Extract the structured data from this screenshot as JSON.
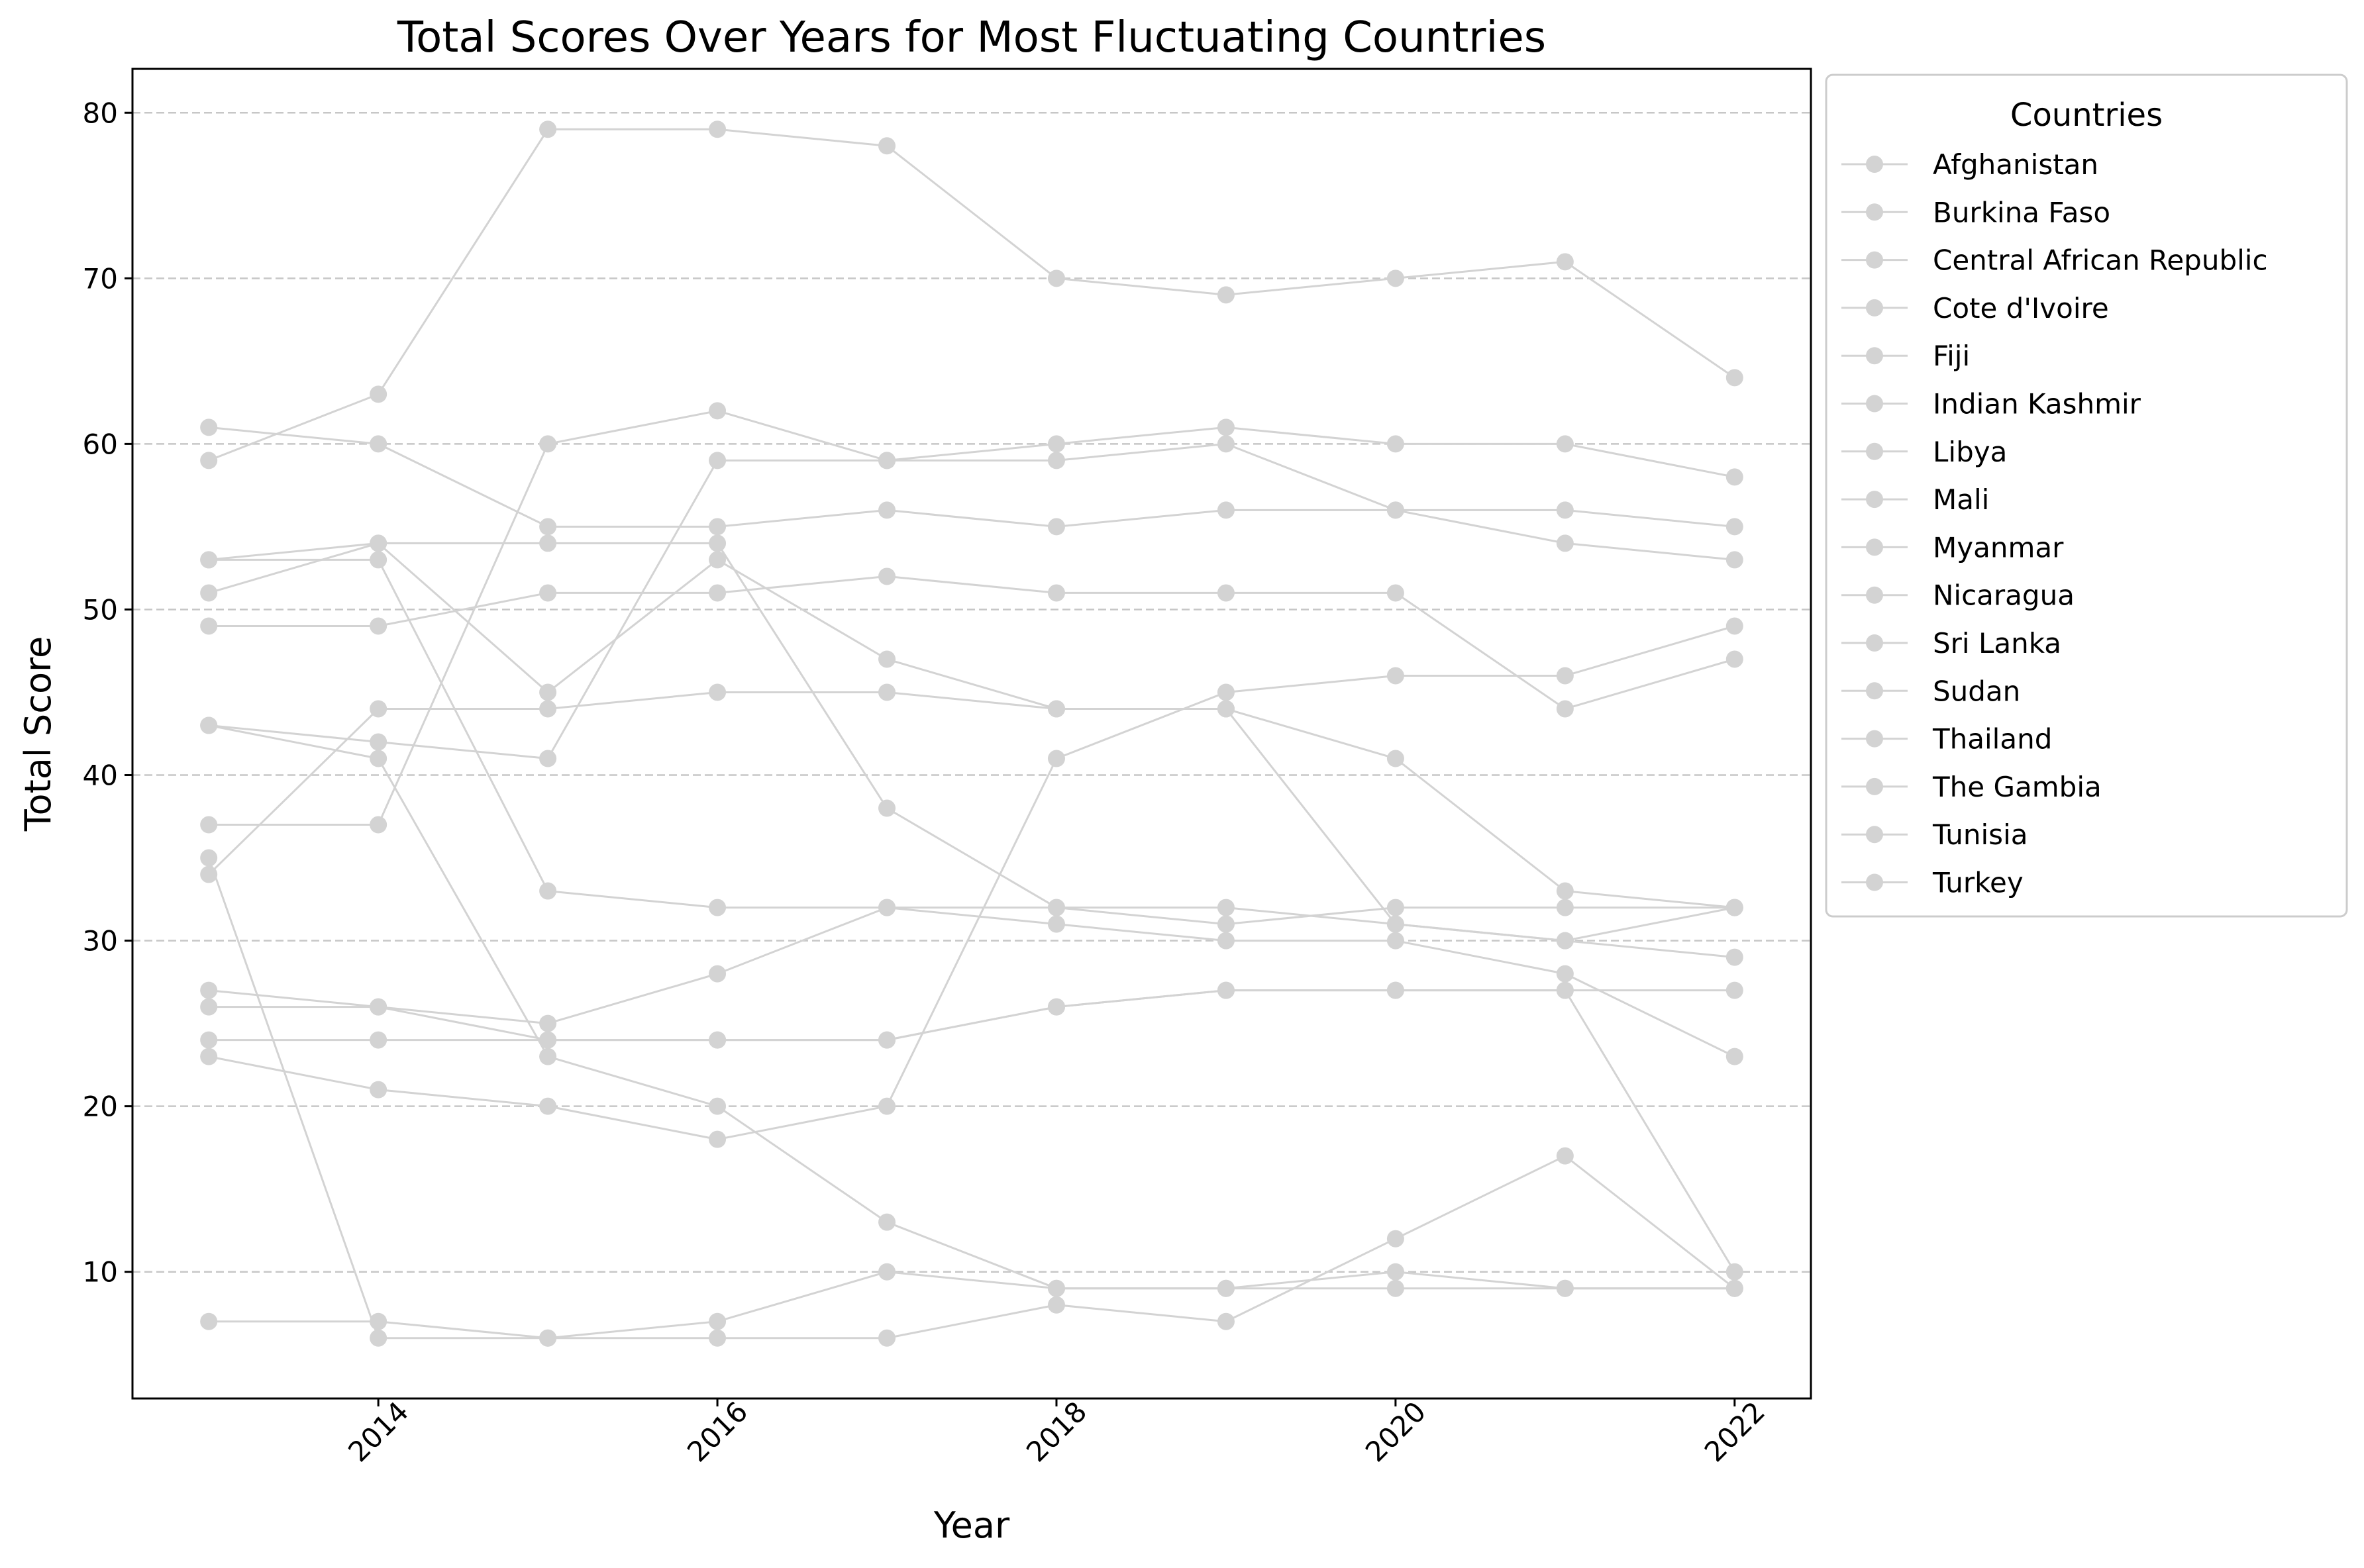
{
  "chart_data": {
    "type": "line",
    "title": "Total Scores Over Years for Most Fluctuating Countries",
    "xlabel": "Year",
    "ylabel": "Total Score",
    "xlim": [
      2012.55,
      2022.45
    ],
    "ylim": [
      2.35,
      82.65
    ],
    "x_ticks": [
      2014,
      2016,
      2018,
      2020,
      2022
    ],
    "y_ticks": [
      10,
      20,
      30,
      40,
      50,
      60,
      70,
      80
    ],
    "grid": "y-dashed",
    "legend_title": "Countries",
    "legend_position": "outside-right",
    "line_color": "#d3d3d3",
    "x": [
      2013,
      2014,
      2015,
      2016,
      2017,
      2018,
      2019,
      2020,
      2021,
      2022
    ],
    "series": [
      {
        "name": "Afghanistan",
        "values": [
          24,
          24,
          24,
          24,
          24,
          26,
          27,
          27,
          27,
          10
        ]
      },
      {
        "name": "Burkina Faso",
        "values": [
          43,
          42,
          41,
          59,
          59,
          59,
          60,
          56,
          54,
          53
        ]
      },
      {
        "name": "Central African Republic",
        "values": [
          7,
          7,
          6,
          7,
          10,
          9,
          9,
          10,
          9,
          9
        ]
      },
      {
        "name": "Cote d'Ivoire",
        "values": [
          34,
          44,
          44,
          45,
          45,
          44,
          44,
          41,
          33,
          32
        ]
      },
      {
        "name": "Fiji",
        "values": [
          23,
          21,
          20,
          18,
          20,
          41,
          45,
          46,
          46,
          49
        ]
      },
      {
        "name": "Indian Kashmir",
        "values": [
          49,
          49,
          51,
          51,
          52,
          51,
          51,
          51,
          44,
          47
        ]
      },
      {
        "name": "Libya",
        "values": [
          43,
          41,
          23,
          20,
          13,
          9,
          9,
          9,
          9,
          9
        ]
      },
      {
        "name": "Mali",
        "values": [
          51,
          54,
          54,
          54,
          38,
          32,
          32,
          31,
          30,
          29
        ]
      },
      {
        "name": "Myanmar",
        "values": [
          35,
          6,
          6,
          6,
          6,
          8,
          7,
          12,
          17,
          9
        ]
      },
      {
        "name": "Nicaragua",
        "values": [
          53,
          53,
          33,
          32,
          32,
          31,
          30,
          30,
          28,
          23
        ]
      },
      {
        "name": "Sri Lanka",
        "values": [
          37,
          37,
          60,
          62,
          59,
          60,
          61,
          60,
          60,
          58
        ]
      },
      {
        "name": "Sudan",
        "values": [
          26,
          26,
          24,
          24,
          24,
          26,
          27,
          27,
          27,
          27
        ]
      },
      {
        "name": "Thailand",
        "values": [
          27,
          26,
          25,
          28,
          32,
          32,
          31,
          32,
          32,
          32
        ]
      },
      {
        "name": "The Gambia",
        "values": [
          53,
          54,
          45,
          53,
          47,
          44,
          44,
          31,
          30,
          32
        ]
      },
      {
        "name": "Tunisia",
        "values": [
          59,
          63,
          79,
          79,
          78,
          70,
          69,
          70,
          71,
          64
        ]
      },
      {
        "name": "Turkey",
        "values": [
          61,
          60,
          55,
          55,
          56,
          55,
          56,
          56,
          56,
          55
        ]
      }
    ]
  }
}
